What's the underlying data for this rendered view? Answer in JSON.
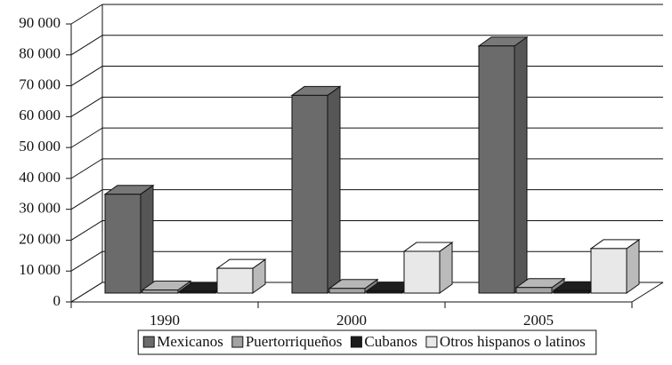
{
  "chart_data": {
    "type": "bar3d",
    "categories": [
      "1990",
      "2000",
      "2005"
    ],
    "series": [
      {
        "name": "Mexicanos",
        "color": "#6b6b6b",
        "values": [
          32000,
          64000,
          80000
        ]
      },
      {
        "name": "Puertorriqueños",
        "color": "#a3a3a3",
        "values": [
          1000,
          1500,
          1800
        ]
      },
      {
        "name": "Cubanos",
        "color": "#1c1c1c",
        "values": [
          600,
          700,
          800
        ]
      },
      {
        "name": "Otros hispanos o latinos",
        "color": "#e8e8e8",
        "values": [
          8000,
          13500,
          14400
        ]
      }
    ],
    "ylim": [
      0,
      90000
    ],
    "yticks": [
      0,
      {
        "value": 10000,
        "label": "10 000"
      },
      {
        "value": 20000,
        "label": "20 000"
      },
      {
        "value": 30000,
        "label": "30 000"
      },
      {
        "value": 40000,
        "label": "40 000"
      },
      {
        "value": 50000,
        "label": "50 000"
      },
      {
        "value": 60000,
        "label": "60 000"
      },
      {
        "value": 70000,
        "label": "70 000"
      },
      {
        "value": 80000,
        "label": "80 000"
      },
      {
        "value": 90000,
        "label": "90 000"
      }
    ],
    "grid": true,
    "legend": "bottom"
  }
}
